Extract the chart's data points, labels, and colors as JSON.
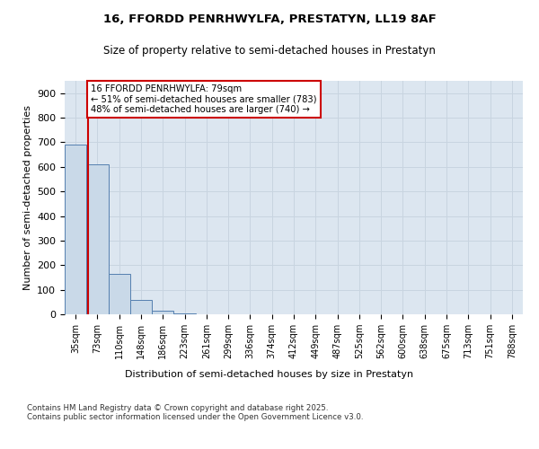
{
  "title_line1": "16, FFORDD PENRHWYLFA, PRESTATYN, LL19 8AF",
  "title_line2": "Size of property relative to semi-detached houses in Prestatyn",
  "xlabel": "Distribution of semi-detached houses by size in Prestatyn",
  "ylabel": "Number of semi-detached properties",
  "categories": [
    "35sqm",
    "73sqm",
    "110sqm",
    "148sqm",
    "186sqm",
    "223sqm",
    "261sqm",
    "299sqm",
    "336sqm",
    "374sqm",
    "412sqm",
    "449sqm",
    "487sqm",
    "525sqm",
    "562sqm",
    "600sqm",
    "638sqm",
    "675sqm",
    "713sqm",
    "751sqm",
    "788sqm"
  ],
  "bar_heights": [
    690,
    610,
    165,
    60,
    15,
    5,
    1,
    0,
    0,
    0,
    0,
    0,
    0,
    0,
    0,
    0,
    0,
    0,
    0,
    0,
    0
  ],
  "bar_color": "#c9d9e8",
  "bar_edge_color": "#5580b0",
  "property_line_x": 0.575,
  "annotation_text": "16 FFORDD PENRHWYLFA: 79sqm\n← 51% of semi-detached houses are smaller (783)\n48% of semi-detached houses are larger (740) →",
  "ylim": [
    0,
    950
  ],
  "yticks": [
    0,
    100,
    200,
    300,
    400,
    500,
    600,
    700,
    800,
    900
  ],
  "grid_color": "#c8d4e0",
  "bg_color": "#dce6f0",
  "footer_text": "Contains HM Land Registry data © Crown copyright and database right 2025.\nContains public sector information licensed under the Open Government Licence v3.0.",
  "red_line_color": "#cc0000",
  "annotation_box_color": "#cc0000",
  "fig_bg": "#ffffff"
}
